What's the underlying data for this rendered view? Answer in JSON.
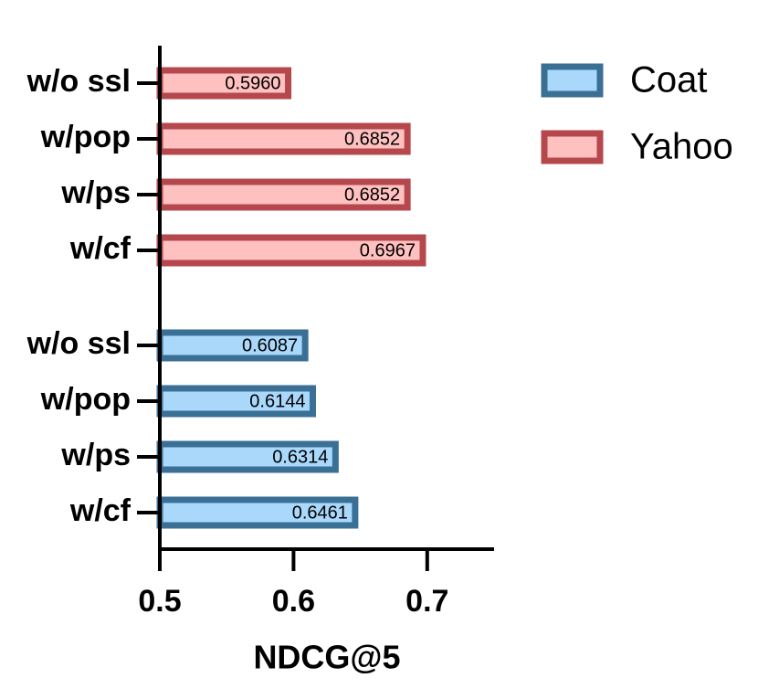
{
  "chart_data": {
    "type": "barh",
    "x_label": "NDCG@5",
    "categories": [
      "w/o ssl",
      "w/pop",
      "w/ps",
      "w/cf"
    ],
    "series": [
      {
        "name": "Coat",
        "color": "#a9d8fb",
        "edge_color": "#3a6f96",
        "values": [
          0.6087,
          0.6144,
          0.6314,
          0.6461
        ],
        "value_labels": [
          "0.6087",
          "0.6144",
          "0.6314",
          "0.6461"
        ]
      },
      {
        "name": "Yahoo",
        "color": "#ffc0c0",
        "edge_color": "#b5484d",
        "values": [
          0.596,
          0.6852,
          0.6852,
          0.6967
        ],
        "value_labels": [
          "0.5960",
          "0.6852",
          "0.6852",
          "0.6967"
        ]
      }
    ],
    "xlim": [
      0.5,
      0.75
    ],
    "xticks": [
      0.5,
      0.6,
      0.7
    ],
    "legend": "upper right"
  }
}
